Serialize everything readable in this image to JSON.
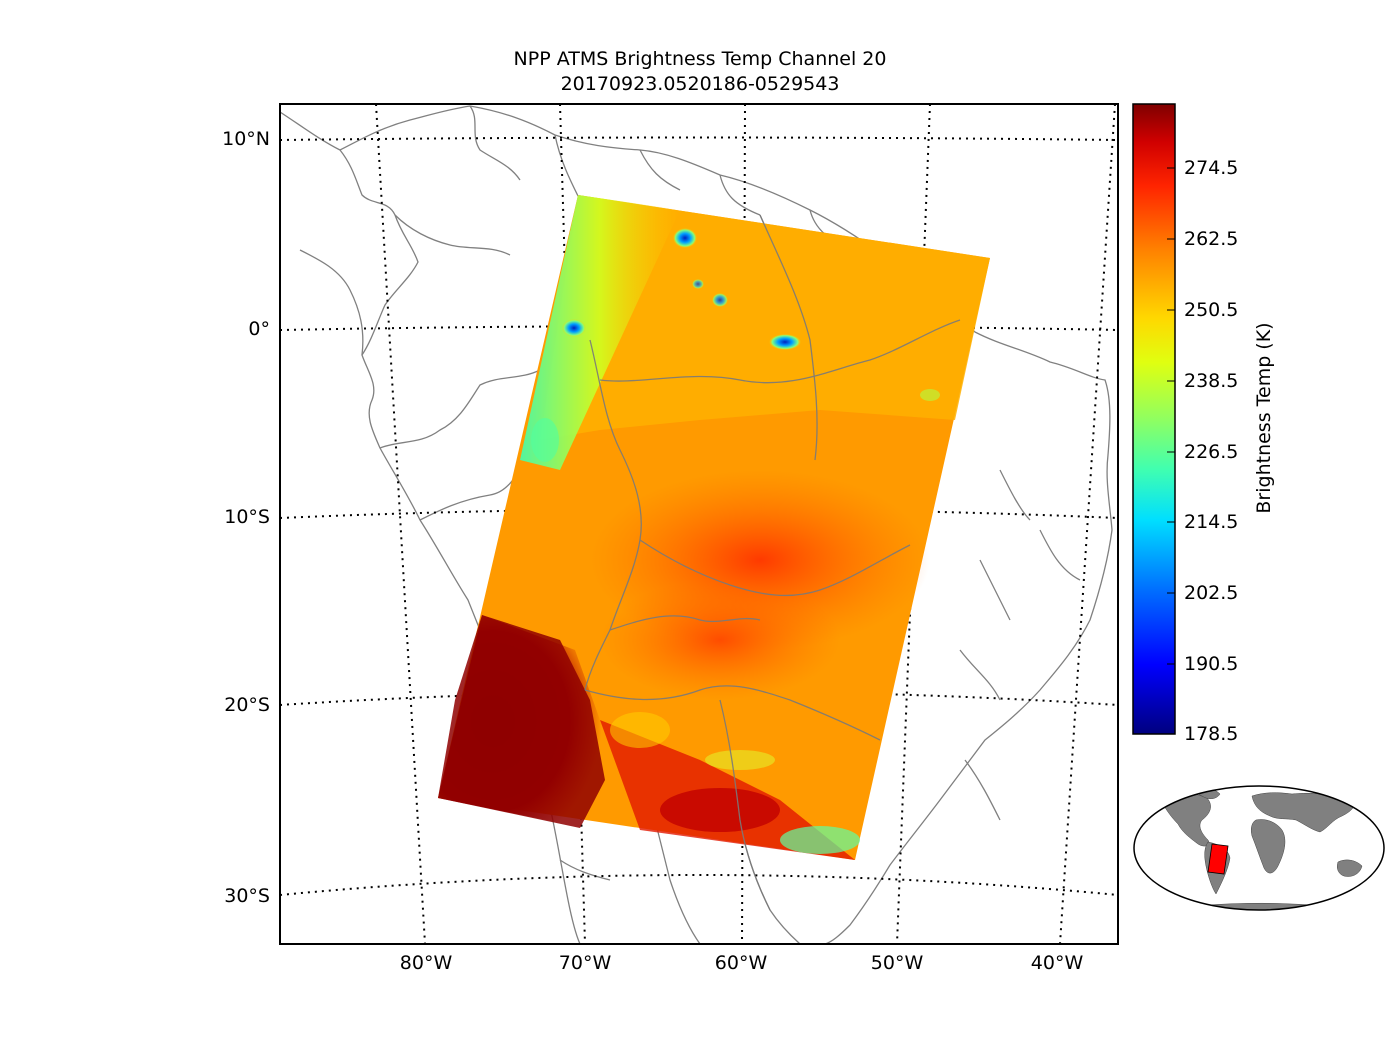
{
  "title": {
    "line1": "NPP ATMS Brightness Temp Channel 20",
    "line2": "20170923.0520186-0529543"
  },
  "map": {
    "projection": "orthographic (South America)",
    "latitude_labels": [
      "10°N",
      "0°",
      "10°S",
      "20°S",
      "30°S"
    ],
    "longitude_labels": [
      "80°W",
      "70°W",
      "60°W",
      "50°W",
      "40°W"
    ],
    "grid_lines": "dotted black",
    "boundaries_color": "#808080",
    "swath": {
      "corners_lonlat": [
        [
          -70.5,
          7.0
        ],
        [
          -44.0,
          3.5
        ],
        [
          -52.5,
          -28.0
        ],
        [
          -79.0,
          -24.5
        ]
      ],
      "dominant_value_K": "250.5–262.5 (orange)",
      "warm_region": "Bolivia/Brazil interior ~268 K (red)",
      "hot_region": "Pacific off Chile ~280 K (dark red)",
      "cold_spots": "blue convective cells near equator ~200 K"
    }
  },
  "colorbar": {
    "label": "Brightness Temp (K)",
    "colormap": "jet",
    "min": 178.5,
    "max": 280.5,
    "ticks": [
      "274.5",
      "262.5",
      "250.5",
      "238.5",
      "226.5",
      "214.5",
      "202.5",
      "190.5",
      "178.5"
    ]
  },
  "inset": {
    "description_colors": {
      "land": "#808080",
      "swath": "#ff0000"
    }
  }
}
